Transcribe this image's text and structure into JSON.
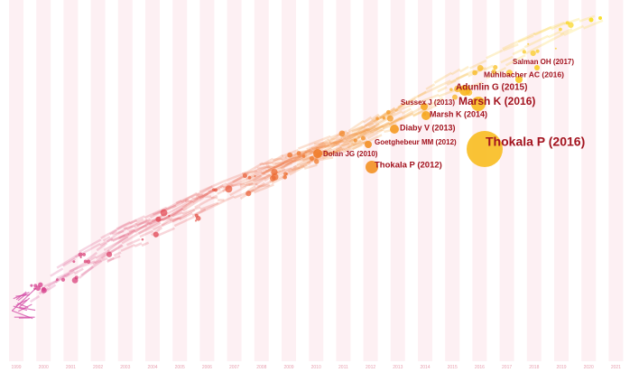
{
  "years": [
    "1999",
    "2000",
    "2001",
    "2002",
    "2003",
    "2004",
    "2005",
    "2006",
    "2007",
    "2008",
    "2009",
    "2010",
    "2011",
    "2012",
    "2013",
    "2014",
    "2015",
    "2016",
    "2017",
    "2018",
    "2019",
    "2020",
    "2021"
  ],
  "nodes": [
    {
      "label": "Salman OH (2017)"
    },
    {
      "label": "Mühlbacher AC (2016)"
    },
    {
      "label": "Adunlin G (2015)"
    },
    {
      "label": "Marsh K (2016)"
    },
    {
      "label": "Sussex J (2013)"
    },
    {
      "label": "Marsh K (2014)"
    },
    {
      "label": "Diaby V (2013)"
    },
    {
      "label": "Goetghebeur MM (2012)"
    },
    {
      "label": "Thokala P (2016)"
    },
    {
      "label": "Dolan JG (2010)"
    },
    {
      "label": "Thokala P (2012)"
    }
  ]
}
